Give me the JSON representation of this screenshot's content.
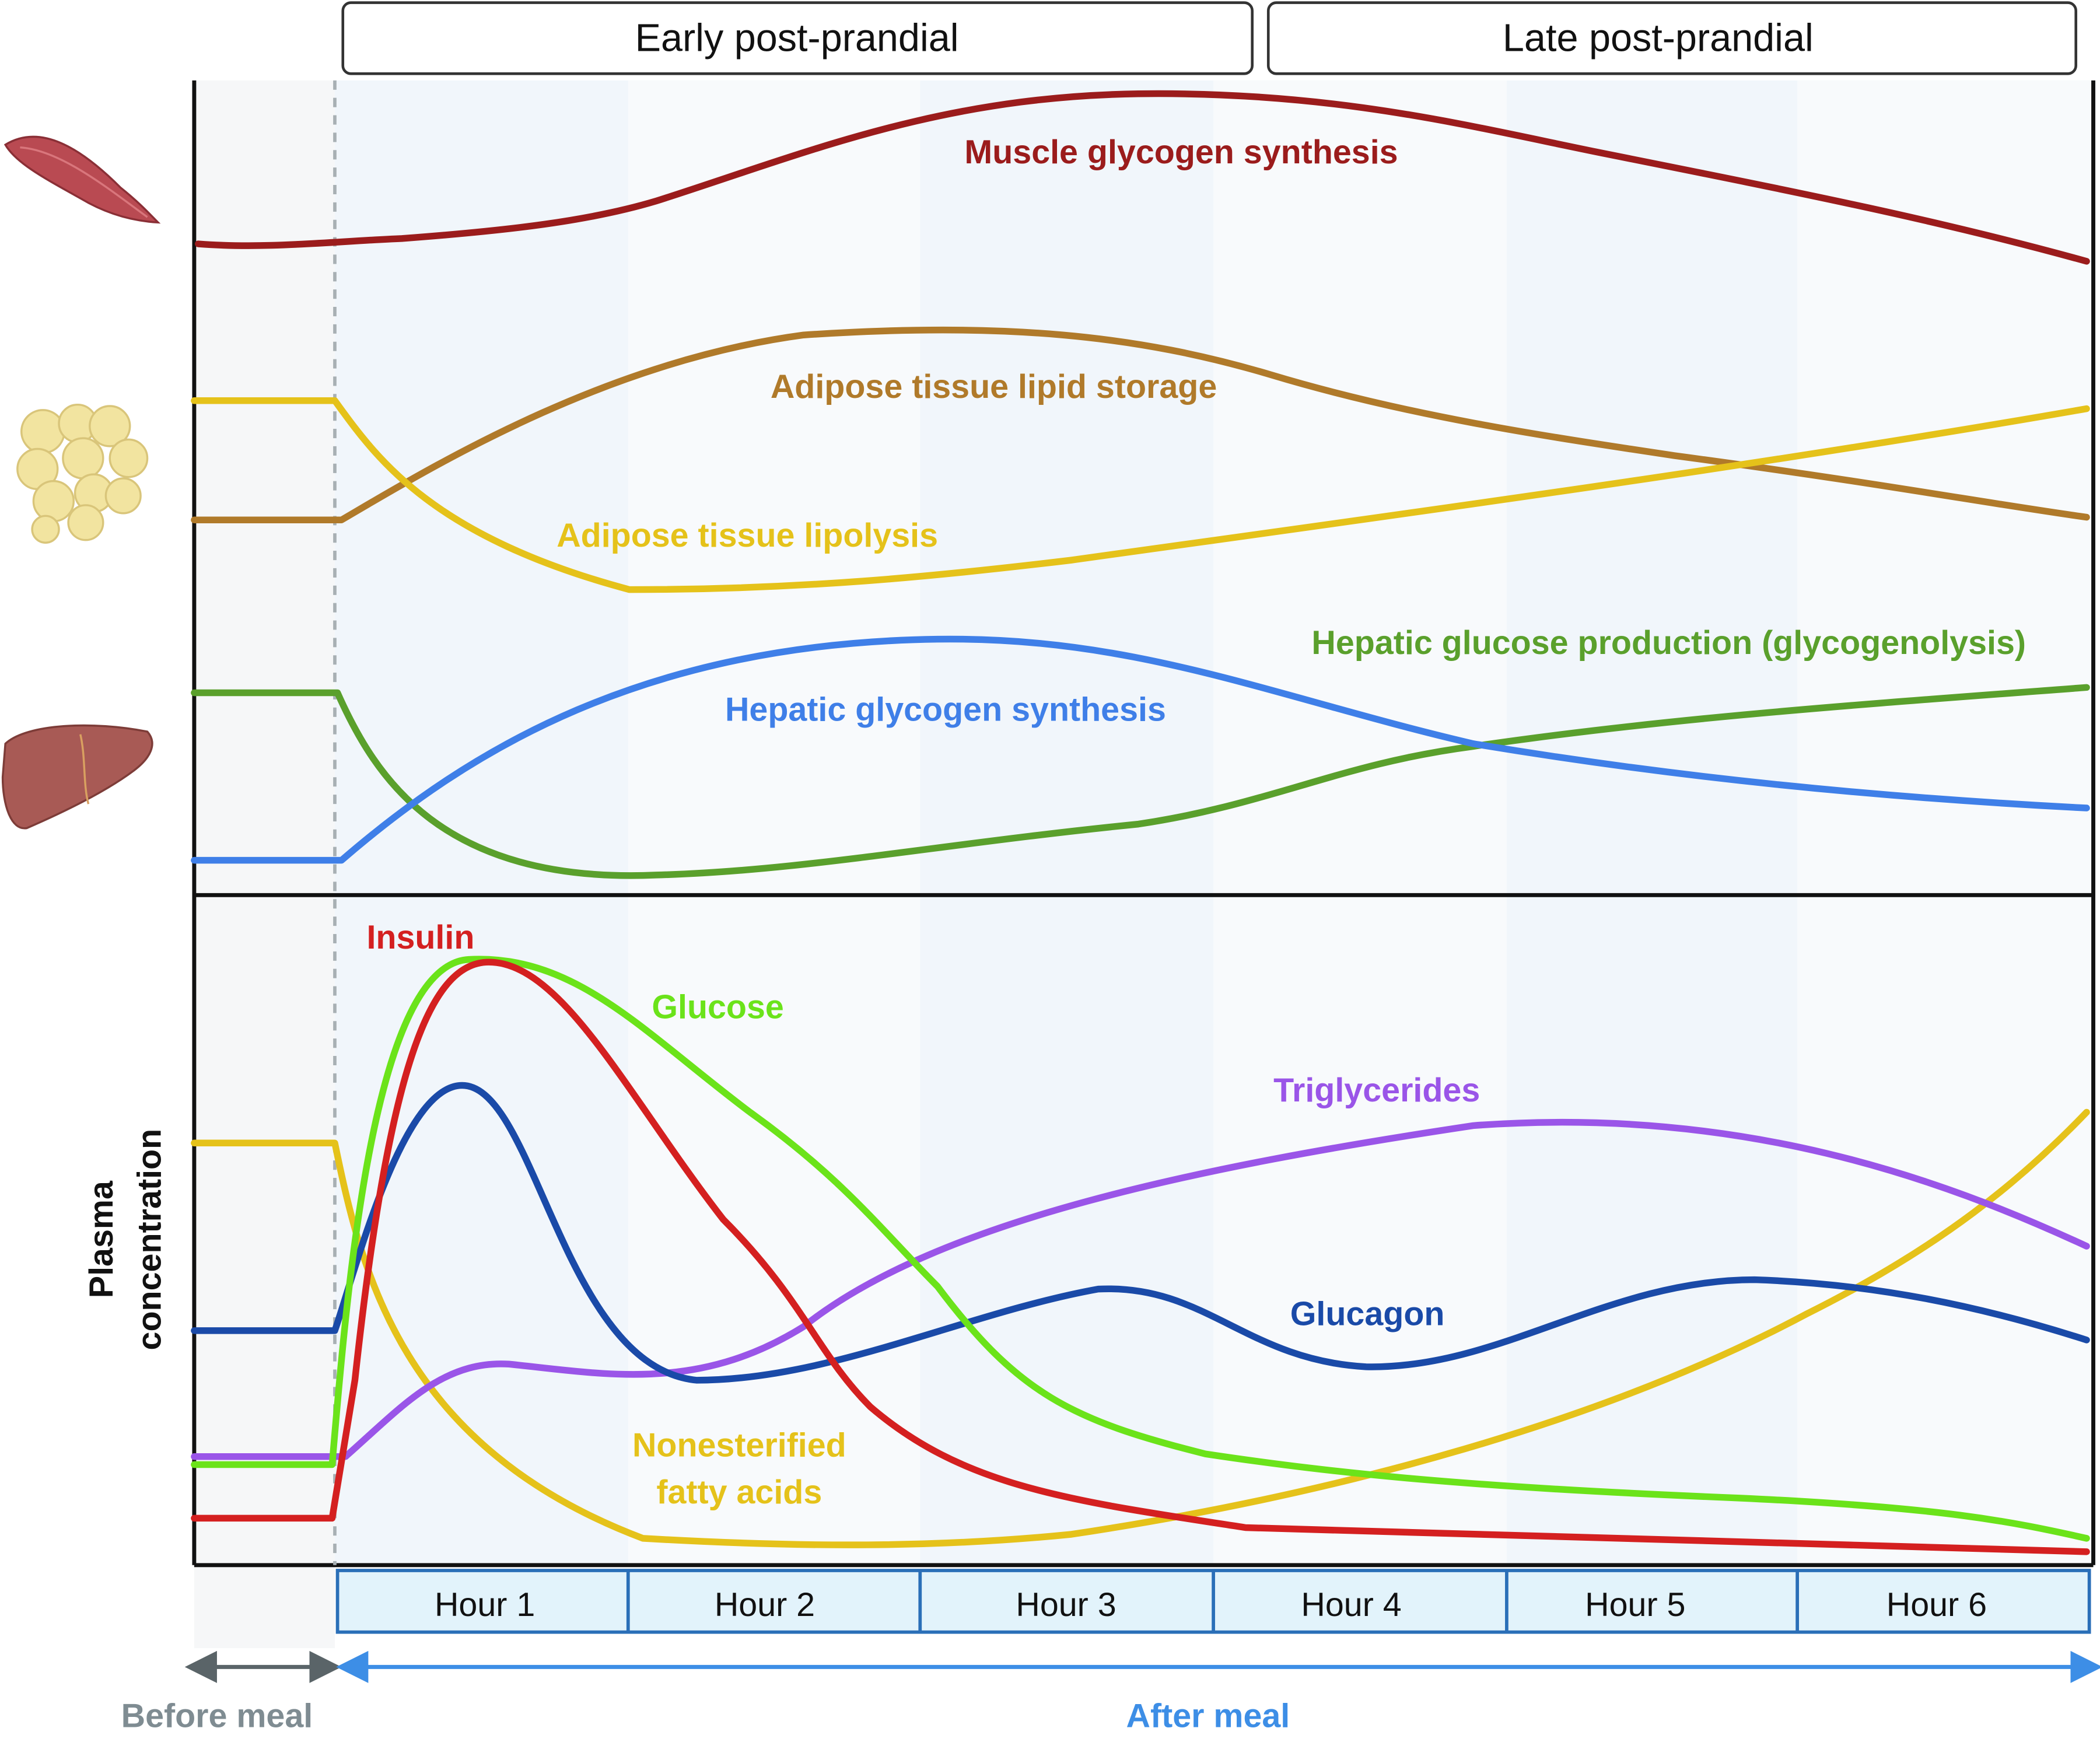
{
  "phases": [
    "Early post-prandial",
    "Late post-prandial"
  ],
  "tissue_curves": [
    "Muscle glycogen synthesis",
    "Adipose tissue lipid storage",
    "Adipose tissue lipolysis",
    "Hepatic glucose production (glycogenolysis)",
    "Hepatic glycogen synthesis"
  ],
  "plasma_curves": [
    "Insulin",
    "Glucose",
    "Triglycerides",
    "Glucagon",
    "Nonesterified",
    "fatty acids"
  ],
  "y_axis_label": [
    "Plasma",
    "concentration"
  ],
  "hours": [
    "Hour 1",
    "Hour 2",
    "Hour 3",
    "Hour 4",
    "Hour 5",
    "Hour 6"
  ],
  "timeline": {
    "before": "Before meal",
    "after": "After meal"
  }
}
